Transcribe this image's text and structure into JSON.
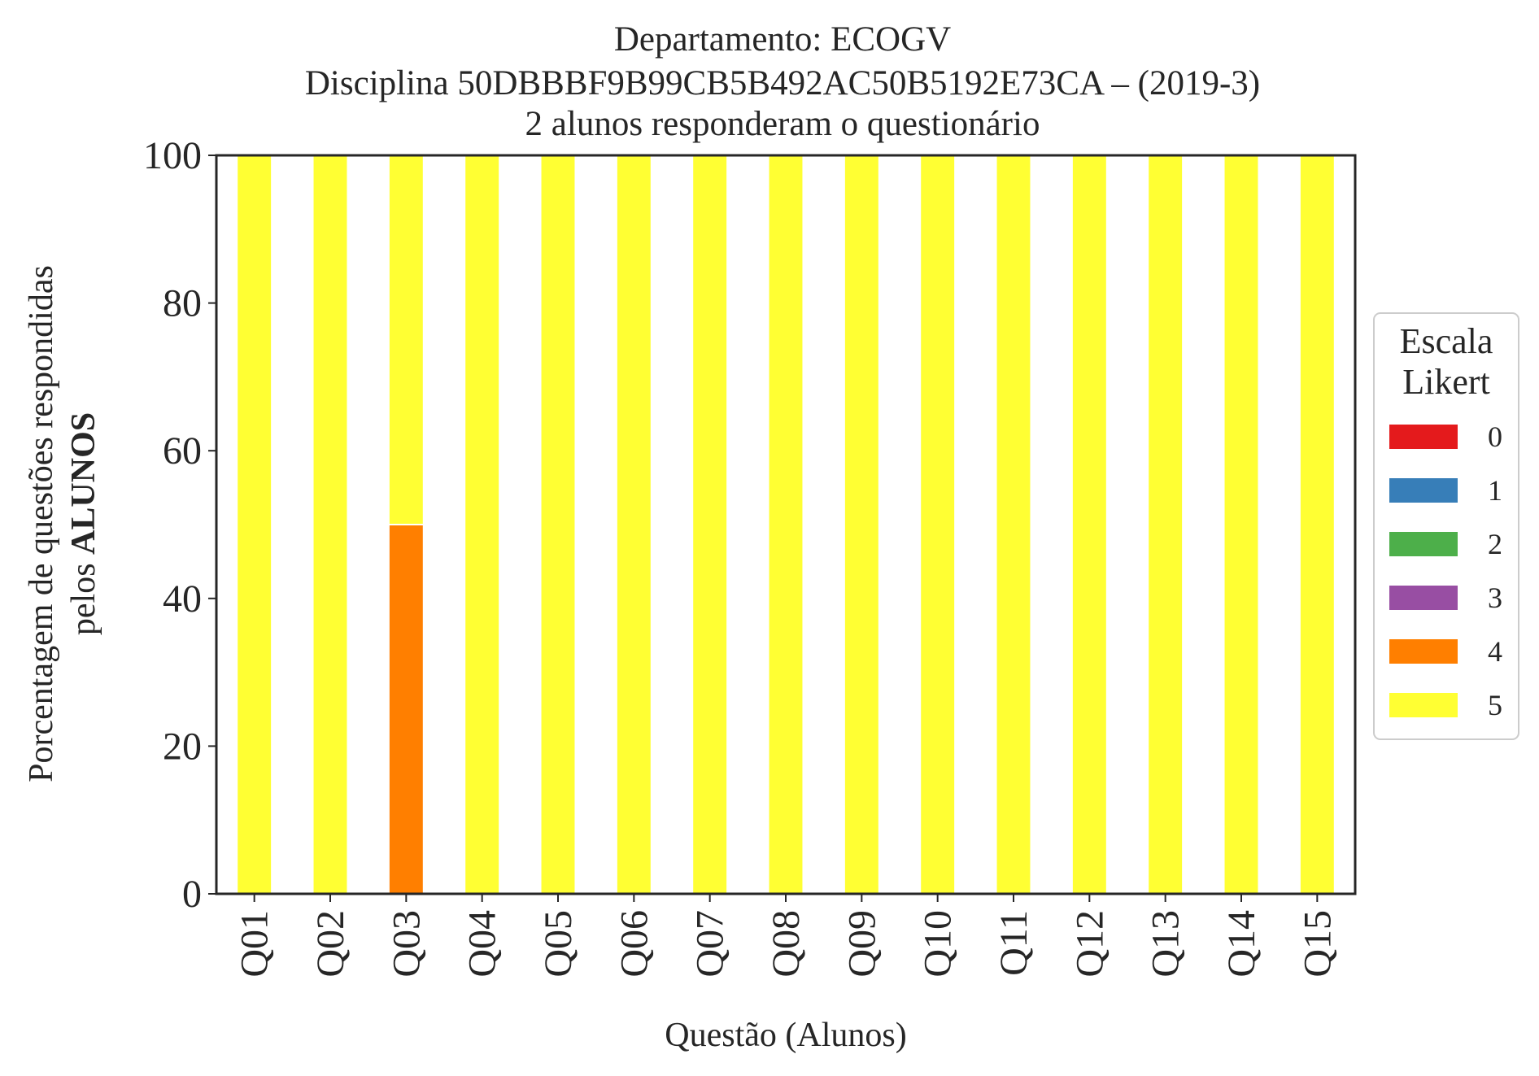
{
  "chart_data": {
    "type": "bar",
    "stacked": true,
    "title_lines": [
      "Departamento: ECOGV",
      "Disciplina 50DBBBF9B99CB5B492AC50B5192E73CA – (2019-3)",
      "2 alunos responderam o questionário"
    ],
    "xlabel": "Questão (Alunos)",
    "ylabel_line1": "Porcentagem de questões respondidas",
    "ylabel_line2_prefix": "pelos ",
    "ylabel_line2_bold": "ALUNOS",
    "ylim": [
      0,
      100
    ],
    "yticks": [
      "0",
      "20",
      "40",
      "60",
      "80",
      "100"
    ],
    "ytick_values": [
      0,
      20,
      40,
      60,
      80,
      100
    ],
    "categories": [
      "Q01",
      "Q02",
      "Q03",
      "Q04",
      "Q05",
      "Q06",
      "Q07",
      "Q08",
      "Q09",
      "Q10",
      "Q11",
      "Q12",
      "Q13",
      "Q14",
      "Q15"
    ],
    "series": [
      {
        "name": "0",
        "color": "#e41a1c",
        "values": [
          0,
          0,
          0,
          0,
          0,
          0,
          0,
          0,
          0,
          0,
          0,
          0,
          0,
          0,
          0
        ]
      },
      {
        "name": "1",
        "color": "#377eb8",
        "values": [
          0,
          0,
          0,
          0,
          0,
          0,
          0,
          0,
          0,
          0,
          0,
          0,
          0,
          0,
          0
        ]
      },
      {
        "name": "2",
        "color": "#4daf4a",
        "values": [
          0,
          0,
          0,
          0,
          0,
          0,
          0,
          0,
          0,
          0,
          0,
          0,
          0,
          0,
          0
        ]
      },
      {
        "name": "3",
        "color": "#984ea3",
        "values": [
          0,
          0,
          0,
          0,
          0,
          0,
          0,
          0,
          0,
          0,
          0,
          0,
          0,
          0,
          0
        ]
      },
      {
        "name": "4",
        "color": "#ff7f00",
        "values": [
          0,
          0,
          50,
          0,
          0,
          0,
          0,
          0,
          0,
          0,
          0,
          0,
          0,
          0,
          0
        ]
      },
      {
        "name": "5",
        "color": "#ffff33",
        "values": [
          100,
          100,
          50,
          100,
          100,
          100,
          100,
          100,
          100,
          100,
          100,
          100,
          100,
          100,
          100
        ]
      }
    ],
    "legend": {
      "title_line1": "Escala",
      "title_line2": "Likert",
      "position": "center-right outside"
    },
    "grid": false
  }
}
